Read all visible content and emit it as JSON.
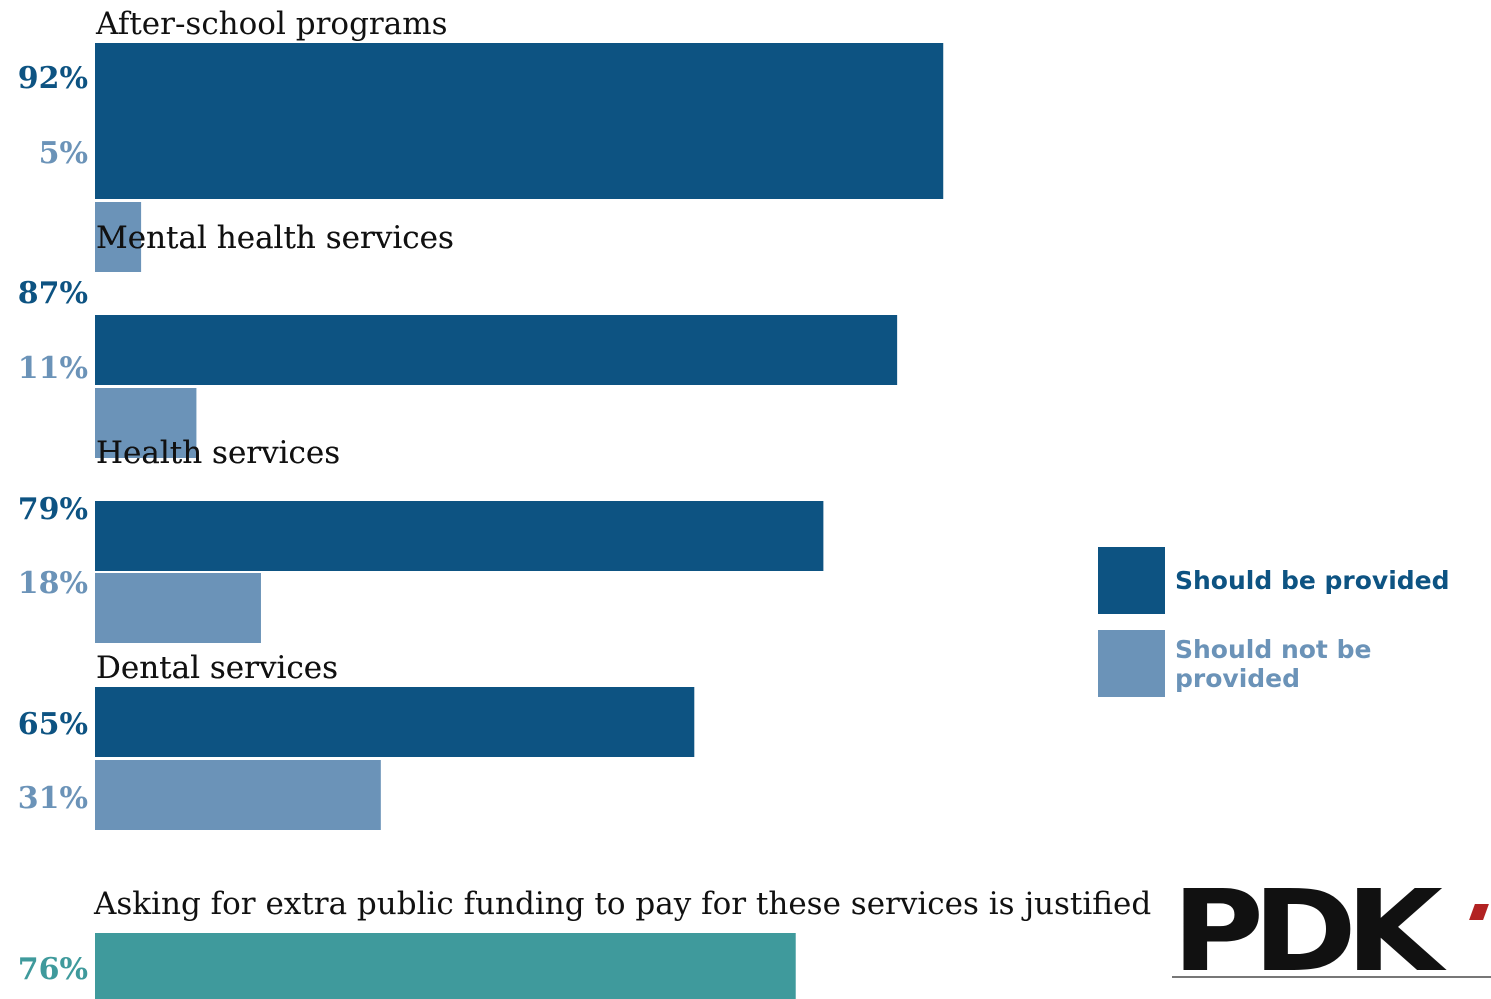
{
  "chart_data": {
    "type": "bar",
    "orientation": "horizontal",
    "categories": [
      "After-school programs",
      "Mental health services",
      "Health services",
      "Dental services"
    ],
    "series": [
      {
        "name": "Should be provided",
        "values": [
          92,
          87,
          79,
          65
        ],
        "color": "#0d5382"
      },
      {
        "name": "Should not be provided",
        "values": [
          5,
          11,
          18,
          31
        ],
        "color": "#6b93b8"
      }
    ],
    "value_suffix": "%",
    "xlim": [
      0,
      100
    ],
    "legend_position": "right",
    "grid": false,
    "secondary": {
      "label": "Asking for extra public funding to pay for these services is justified",
      "value": 76,
      "color": "#3f9a9c"
    }
  },
  "legend": {
    "items": [
      {
        "label": "Should be provided",
        "color": "#0d5382"
      },
      {
        "label": "Should not be provided",
        "color": "#6b93b8"
      }
    ]
  },
  "logo": {
    "text": "PDK"
  }
}
